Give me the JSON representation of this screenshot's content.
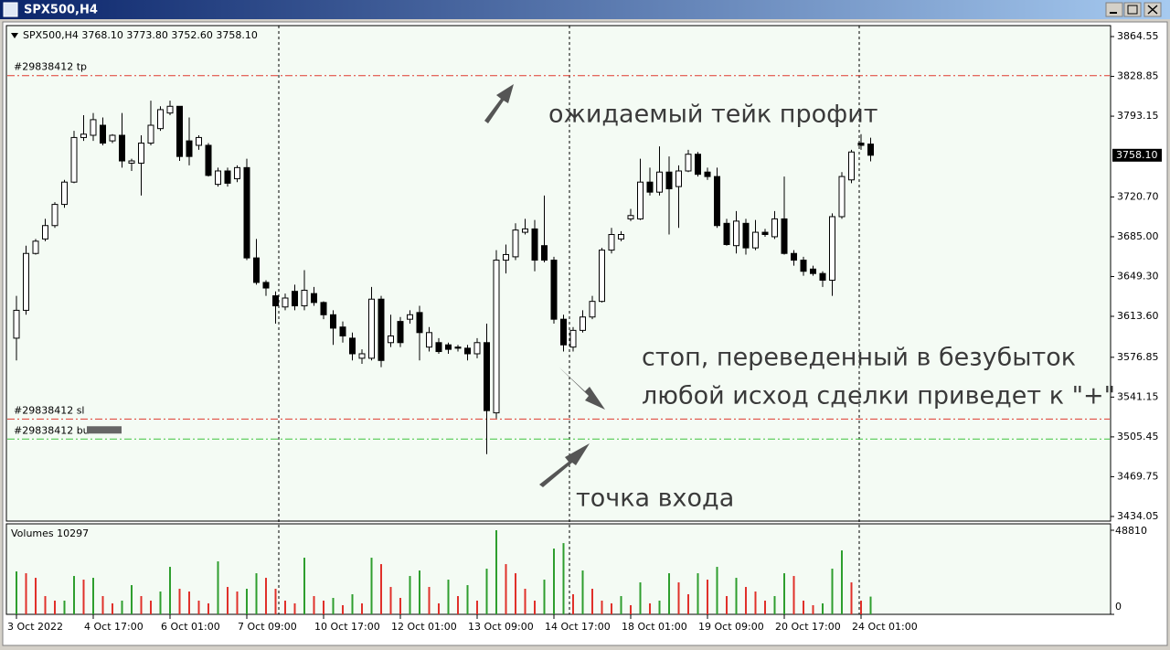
{
  "window_title": "SPX500,H4",
  "chart_data": [
    {
      "type": "candlestick",
      "info_line": "SPX500,H4  3768.10 3773.80 3752.60 3758.10",
      "color": "#000000",
      "categories": [
        "3 Oct 2022",
        null,
        null,
        null,
        null,
        null,
        null,
        null,
        "4 Oct 17:00",
        null,
        null,
        null,
        null,
        null,
        null,
        null,
        "6 Oct 01:00",
        null,
        null,
        null,
        null,
        null,
        null,
        null,
        "7 Oct 09:00",
        null,
        null,
        null,
        null,
        null,
        null,
        null,
        "10 Oct 17:00",
        null,
        null,
        null,
        null,
        null,
        null,
        null,
        "12 Oct 01:00",
        null,
        null,
        null,
        null,
        null,
        null,
        null,
        "13 Oct 09:00",
        null,
        null,
        null,
        null,
        null,
        null,
        null,
        "14 Oct 17:00",
        null,
        null,
        null,
        null,
        null,
        null,
        null,
        "18 Oct 01:00",
        null,
        null,
        null,
        null,
        null,
        null,
        null,
        "19 Oct 09:00",
        null,
        null,
        null,
        null,
        null,
        null,
        null,
        "20 Oct 17:00",
        null,
        null,
        null,
        null,
        null,
        null,
        null,
        "24 Oct 01:00",
        null
      ],
      "open": [
        3594,
        3619,
        3670,
        3683,
        3695,
        3714,
        3734,
        3774,
        3776,
        3785,
        3771,
        3776,
        3751,
        3751,
        3769,
        3782,
        3796,
        3802,
        3771,
        3767,
        3767,
        3732,
        3744,
        3737,
        3747,
        3666,
        3644,
        3632,
        3622,
        3636,
        3623,
        3634,
        3626,
        3615,
        3604,
        3594,
        3576,
        3576,
        3629,
        3590,
        3609,
        3611,
        3617,
        3586,
        3590,
        3588,
        3586,
        3585,
        3580,
        3590,
        3527,
        3664,
        3667,
        3689,
        3692,
        3677,
        3664,
        3611,
        3586,
        3601,
        3613,
        3627,
        3673,
        3683,
        3701,
        3701,
        3734,
        3725,
        3743,
        3730,
        3744,
        3759,
        3743,
        3739,
        3697,
        3677,
        3697,
        3675,
        3689,
        3685,
        3701,
        3670,
        3664,
        3656,
        3652,
        3646,
        3703,
        3736,
        3769,
        3768.1
      ],
      "high": [
        3632,
        3677,
        3683,
        3701,
        3716,
        3736,
        3780,
        3794,
        3796,
        3792,
        3777,
        3796,
        3755,
        3776,
        3807,
        3802,
        3807,
        3802,
        3792,
        3776,
        3769,
        3747,
        3747,
        3749,
        3755,
        3683,
        3646,
        3636,
        3634,
        3642,
        3655,
        3640,
        3627,
        3619,
        3609,
        3599,
        3584,
        3640,
        3632,
        3615,
        3613,
        3619,
        3623,
        3604,
        3594,
        3590,
        3588,
        3588,
        3594,
        3607,
        3673,
        3678,
        3697,
        3701,
        3700,
        3722,
        3667,
        3615,
        3604,
        3619,
        3632,
        3675,
        3693,
        3690,
        3710,
        3755,
        3747,
        3766,
        3757,
        3749,
        3763,
        3761,
        3747,
        3747,
        3701,
        3708,
        3701,
        3700,
        3692,
        3708,
        3739,
        3673,
        3667,
        3659,
        3654,
        3706,
        3743,
        3763,
        3777,
        3773.8
      ],
      "low": [
        3574,
        3615,
        3669,
        3681,
        3693,
        3711,
        3733,
        3771,
        3771,
        3767,
        3769,
        3747,
        3744,
        3722,
        3767,
        3780,
        3794,
        3753,
        3749,
        3763,
        3739,
        3730,
        3730,
        3734,
        3664,
        3642,
        3632,
        3607,
        3619,
        3619,
        3619,
        3623,
        3611,
        3588,
        3590,
        3574,
        3571,
        3574,
        3568,
        3586,
        3586,
        3607,
        3574,
        3582,
        3580,
        3580,
        3582,
        3574,
        3576,
        3490,
        3522,
        3652,
        3664,
        3687,
        3654,
        3662,
        3607,
        3582,
        3582,
        3599,
        3611,
        3626,
        3670,
        3681,
        3699,
        3700,
        3722,
        3722,
        3687,
        3693,
        3743,
        3739,
        3736,
        3693,
        3677,
        3670,
        3669,
        3673,
        3685,
        3683,
        3669,
        3659,
        3650,
        3650,
        3640,
        3632,
        3701,
        3733,
        3763,
        3752.6
      ],
      "close": [
        3619,
        3670,
        3681,
        3695,
        3714,
        3734,
        3774,
        3777,
        3790,
        3769,
        3776,
        3753,
        3753,
        3769,
        3785,
        3799,
        3802,
        3757,
        3757,
        3774,
        3740,
        3744,
        3733,
        3747,
        3666,
        3644,
        3639,
        3623,
        3630,
        3623,
        3637,
        3626,
        3615,
        3603,
        3596,
        3580,
        3580,
        3629,
        3574,
        3596,
        3590,
        3615,
        3599,
        3599,
        3582,
        3584,
        3585,
        3580,
        3590,
        3529,
        3664,
        3669,
        3691,
        3692,
        3664,
        3664,
        3611,
        3588,
        3601,
        3613,
        3627,
        3673,
        3687,
        3687,
        3704,
        3734,
        3725,
        3743,
        3728,
        3744,
        3759,
        3741,
        3739,
        3695,
        3678,
        3699,
        3675,
        3689,
        3687,
        3701,
        3670,
        3664,
        3654,
        3652,
        3646,
        3703,
        3739,
        3761,
        3767,
        3758.1
      ],
      "ylim": [
        3429.9,
        3874.4
      ],
      "yticks": [
        {
          "value": 3864.55,
          "label": "3864.55"
        },
        {
          "value": 3828.85,
          "label": "3828.85"
        },
        {
          "value": 3793.15,
          "label": "3793.15"
        },
        {
          "value": 3720.7,
          "label": "3720.70"
        },
        {
          "value": 3685,
          "label": "3685.00"
        },
        {
          "value": 3649.3,
          "label": "3649.30"
        },
        {
          "value": 3613.6,
          "label": "3613.60"
        },
        {
          "value": 3576.85,
          "label": "3576.85"
        },
        {
          "value": 3541.15,
          "label": "3541.15"
        },
        {
          "value": 3505.45,
          "label": "3505.45"
        },
        {
          "value": 3469.75,
          "label": "3469.75"
        },
        {
          "value": 3434.05,
          "label": "3434.05"
        }
      ],
      "current_price": {
        "value": 3758.1,
        "label": "3758.10"
      },
      "levels": [
        {
          "label": "#29838412 tp",
          "value": 3829.5,
          "color": "#e03a2e"
        },
        {
          "label": "#29838412 sl",
          "value": 3521.4,
          "color": "#e03a2e"
        },
        {
          "label": "#29838412 bu",
          "value": 3503.5,
          "color": "#3cc43c"
        }
      ],
      "annotations": [
        "ожидаемый тейк профит",
        "стоп, переведенный в безубыток",
        "любой исход сделки приведет к \"+\"",
        "точка входа"
      ]
    },
    {
      "type": "bar",
      "title": "Volumes 10297",
      "values": [
        24910,
        23850,
        21200,
        10600,
        7950,
        7950,
        22260,
        20140,
        21200,
        10600,
        6360,
        7950,
        16960,
        10600,
        7950,
        13250,
        27560,
        14840,
        13250,
        7950,
        6360,
        30740,
        15900,
        13250,
        14840,
        23850,
        21200,
        14840,
        7950,
        6360,
        32860,
        10600,
        7950,
        9540,
        5300,
        11660,
        6360,
        32860,
        29150,
        15900,
        9540,
        22260,
        25440,
        15900,
        6360,
        20140,
        10600,
        16960,
        7950,
        26500,
        48810,
        29150,
        23850,
        14840,
        7950,
        20140,
        38160,
        41340,
        11660,
        25440,
        14840,
        7950,
        6360,
        10600,
        5300,
        18550,
        6360,
        7950,
        23850,
        18550,
        11660,
        23850,
        20140,
        27560,
        10600,
        21200,
        15900,
        13250,
        7950,
        10600,
        23850,
        22260,
        7950,
        5300,
        6360,
        26500,
        37100,
        18550,
        7950,
        10297
      ],
      "up_color": "#2e9e2e",
      "down_color": "#e0302a",
      "ylim": [
        0,
        52524
      ],
      "yticks": [
        48810,
        0
      ]
    }
  ]
}
